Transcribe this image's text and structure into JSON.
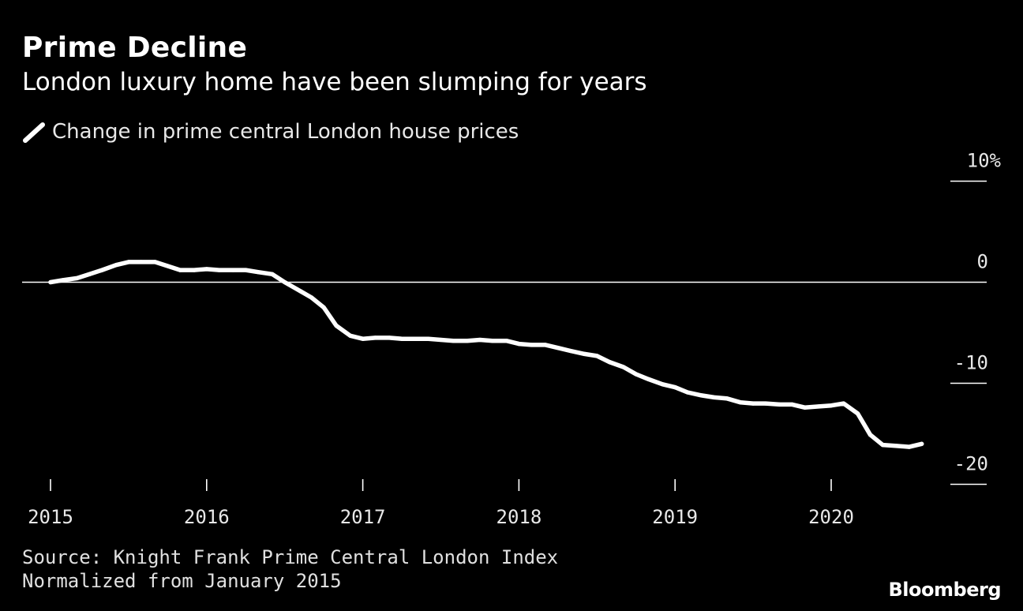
{
  "header": {
    "title": "Prime Decline",
    "subtitle": "London luxury home have been slumping for years"
  },
  "legend": {
    "label": "Change in prime central London house prices"
  },
  "footer": {
    "source": "Source: Knight Frank Prime Central London Index",
    "note": "Normalized from January 2015",
    "brand": "Bloomberg"
  },
  "colors": {
    "background": "#000000",
    "line": "#ffffff",
    "text": "#ffffff"
  },
  "chart_data": {
    "type": "line",
    "title": "Prime Decline",
    "subtitle": "London luxury home have been slumping for years",
    "xlabel": "",
    "ylabel": "",
    "x_tick_labels": [
      "2015",
      "2016",
      "2017",
      "2018",
      "2019",
      "2020"
    ],
    "x_ticks": [
      2015,
      2016,
      2017,
      2018,
      2019,
      2020
    ],
    "y_tick_labels": [
      "10%",
      "0",
      "-10",
      "-20"
    ],
    "y_ticks": [
      10,
      0,
      -10,
      -20
    ],
    "xlim": [
      2014.82,
      2020.98
    ],
    "ylim": [
      -21.3,
      10.5
    ],
    "y_axis_side": "right",
    "zero_line": true,
    "grid": false,
    "legend_position": "top-left",
    "series": [
      {
        "name": "Change in prime central London house prices",
        "x": [
          2015.0,
          2015.08,
          2015.17,
          2015.25,
          2015.33,
          2015.42,
          2015.5,
          2015.58,
          2015.67,
          2015.75,
          2015.83,
          2015.92,
          2016.0,
          2016.08,
          2016.17,
          2016.25,
          2016.33,
          2016.42,
          2016.5,
          2016.58,
          2016.67,
          2016.75,
          2016.83,
          2016.92,
          2017.0,
          2017.08,
          2017.17,
          2017.25,
          2017.33,
          2017.42,
          2017.5,
          2017.58,
          2017.67,
          2017.75,
          2017.83,
          2017.92,
          2018.0,
          2018.08,
          2018.17,
          2018.25,
          2018.33,
          2018.42,
          2018.5,
          2018.58,
          2018.67,
          2018.75,
          2018.83,
          2018.92,
          2019.0,
          2019.08,
          2019.17,
          2019.25,
          2019.33,
          2019.42,
          2019.5,
          2019.58,
          2019.67,
          2019.75,
          2019.83,
          2019.92,
          2020.0,
          2020.08,
          2020.17,
          2020.25,
          2020.33,
          2020.42,
          2020.5,
          2020.58
        ],
        "values": [
          0.0,
          0.2,
          0.4,
          0.8,
          1.2,
          1.7,
          2.0,
          2.0,
          2.0,
          1.6,
          1.2,
          1.2,
          1.3,
          1.2,
          1.2,
          1.2,
          1.0,
          0.8,
          0.0,
          -0.7,
          -1.5,
          -2.5,
          -4.3,
          -5.3,
          -5.6,
          -5.5,
          -5.5,
          -5.6,
          -5.6,
          -5.6,
          -5.7,
          -5.8,
          -5.8,
          -5.7,
          -5.8,
          -5.8,
          -6.1,
          -6.2,
          -6.2,
          -6.5,
          -6.8,
          -7.1,
          -7.3,
          -7.9,
          -8.4,
          -9.1,
          -9.6,
          -10.1,
          -10.4,
          -10.9,
          -11.2,
          -11.4,
          -11.5,
          -11.9,
          -12.0,
          -12.0,
          -12.1,
          -12.1,
          -12.4,
          -12.3,
          -12.2,
          -12.0,
          -13.0,
          -15.1,
          -16.1,
          -16.2,
          -16.3,
          -16.0
        ]
      }
    ]
  }
}
